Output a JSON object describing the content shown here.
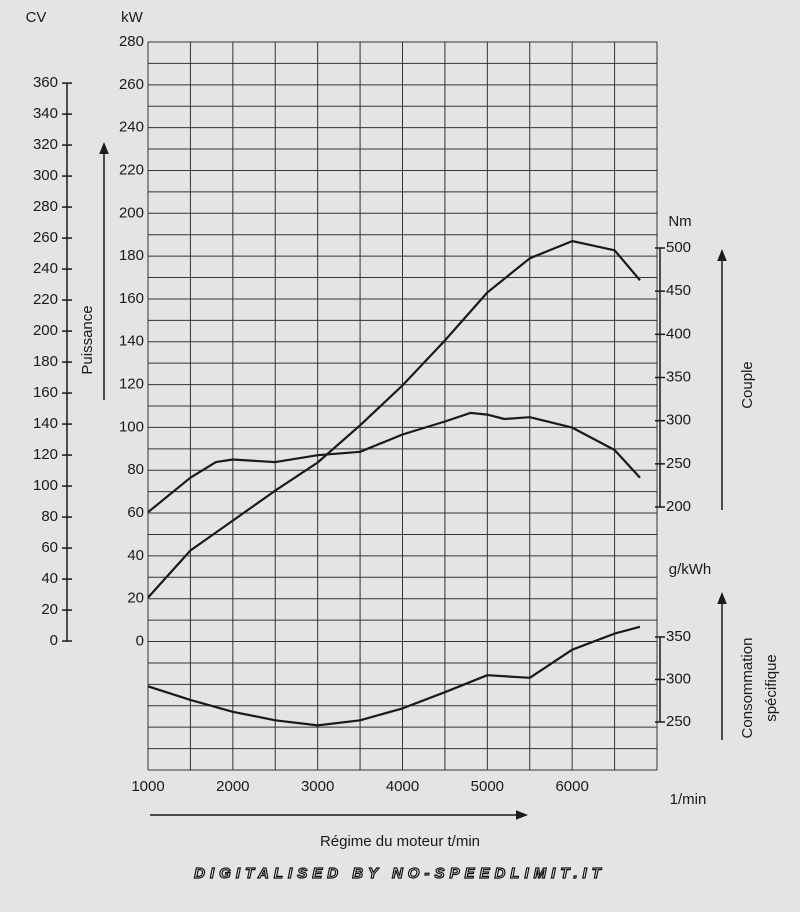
{
  "chart_data": {
    "type": "line",
    "x_label": "Régime du moteur t/min",
    "x_unit": "1/min",
    "xlim": [
      1000,
      7000
    ],
    "xticks": [
      1000,
      2000,
      3000,
      4000,
      5000,
      6000
    ],
    "x_minor_ticks": [
      1000,
      1500,
      2000,
      2500,
      3000,
      3500,
      4000,
      4500,
      5000,
      5500,
      6000,
      6500,
      7000
    ],
    "ylim": [
      -60,
      280
    ],
    "yticks": [
      0,
      20,
      40,
      60,
      80,
      100,
      120,
      140,
      160,
      180,
      200,
      220,
      240,
      260,
      280
    ],
    "y_minor_ticks": [
      -60,
      -50,
      -40,
      -30,
      -20,
      -10,
      0,
      10,
      20,
      30,
      40,
      50,
      60,
      70,
      80,
      90,
      100,
      110,
      120,
      130,
      140,
      150,
      160,
      170,
      180,
      190,
      200,
      210,
      220,
      230,
      240,
      250,
      260,
      270,
      280
    ],
    "y_label": "kW",
    "y_title": "Puissance",
    "y0lim": [
      -83.2,
      386.5
    ],
    "y0ticks": [
      0,
      20,
      40,
      60,
      80,
      100,
      120,
      140,
      160,
      180,
      200,
      220,
      240,
      260,
      280,
      300,
      320,
      340,
      360
    ],
    "y0_label": "CV",
    "y2lim": [
      -104.6,
      738.6
    ],
    "y2ticks": [
      200,
      250,
      300,
      350,
      400,
      450,
      500
    ],
    "y2_label": "Nm",
    "y2_title": "Couple",
    "y3lim": [
      193.5,
      1050
    ],
    "y3ticks": [
      250,
      300,
      350
    ],
    "y3_label": "g/kWh",
    "y3_title": [
      "Consommation",
      "spécifique"
    ],
    "grid": true,
    "color": "#1a1a1a",
    "series": [
      {
        "axis": "y",
        "x": [
          1000,
          1500,
          2000,
          2500,
          3000,
          3500,
          4000,
          4500,
          5000,
          5500,
          6000,
          6500,
          6800
        ],
        "values": [
          20.5,
          42.5,
          56.5,
          70.5,
          83.6,
          101,
          119.6,
          140.6,
          163,
          179,
          187,
          182.7,
          168.7
        ]
      },
      {
        "axis": "y2",
        "x": [
          1000,
          1500,
          1800,
          2000,
          2500,
          3000,
          3500,
          4000,
          4500,
          4800,
          5000,
          5200,
          5500,
          6000,
          6500,
          6800
        ],
        "values": [
          194,
          234,
          252,
          255,
          252,
          260,
          264,
          284,
          299,
          309,
          307,
          302,
          304,
          292,
          266,
          234
        ]
      },
      {
        "axis": "y3",
        "x": [
          1000,
          1500,
          2000,
          2500,
          3000,
          3500,
          4000,
          4500,
          5000,
          5500,
          6000,
          6500,
          6800
        ],
        "values": [
          292,
          276,
          262,
          252,
          246,
          252,
          266,
          285,
          305,
          302,
          335,
          354,
          362
        ]
      }
    ],
    "watermark": "DIGITALISED BY NO-SPEEDLIMIT.IT"
  }
}
